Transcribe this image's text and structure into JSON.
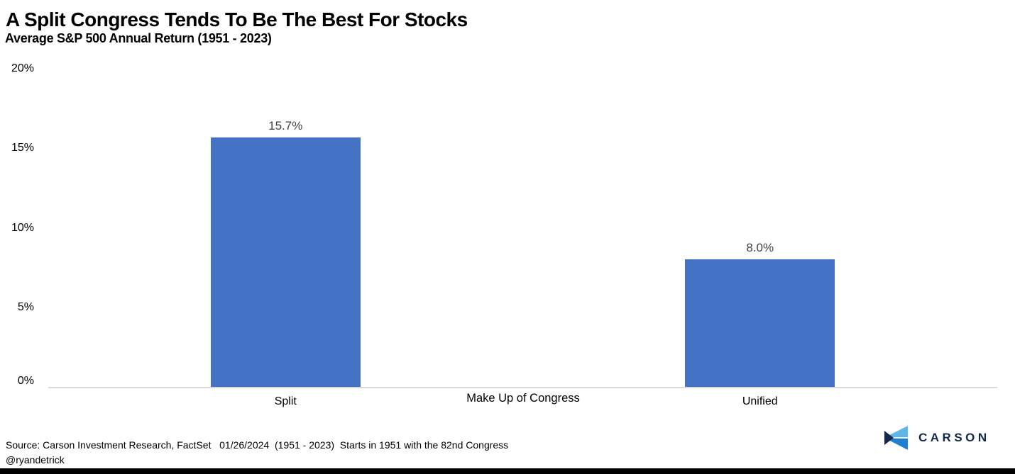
{
  "header": {
    "title": "A Split Congress Tends To Be The Best For Stocks",
    "subtitle": "Average S&P 500 Annual Return (1951 - 2023)"
  },
  "chart_data": {
    "type": "bar",
    "title": "A Split Congress Tends To Be The Best For Stocks",
    "subtitle": "Average S&P 500 Annual Return (1951 - 2023)",
    "categories": [
      "Split",
      "Unified"
    ],
    "values": [
      15.7,
      8.0
    ],
    "value_labels": [
      "15.7%",
      "8.0%"
    ],
    "xlabel": "Make Up of Congress",
    "ylabel": "",
    "ylim": [
      0,
      20
    ],
    "yticks": [
      0,
      5,
      10,
      15,
      20
    ],
    "ytick_labels": [
      "0%",
      "5%",
      "10%",
      "15%",
      "20%"
    ],
    "bar_color": "#4472C4",
    "grid": false,
    "legend": false
  },
  "footer": {
    "source_line": "Source: Carson Investment Research, FactSet   01/26/2024  (1951 - 2023)  Starts in 1951 with the 82nd Congress",
    "handle": "@ryandetrick",
    "logo_text": "CARSON"
  },
  "colors": {
    "bar": "#4472C4",
    "axis_line": "#D9D9D9",
    "value_label": "#404040",
    "logo_navy": "#13294B",
    "logo_light_blue": "#5FB7E8",
    "logo_mid_blue": "#1E7FD0",
    "bottom_bar": "#000000"
  }
}
